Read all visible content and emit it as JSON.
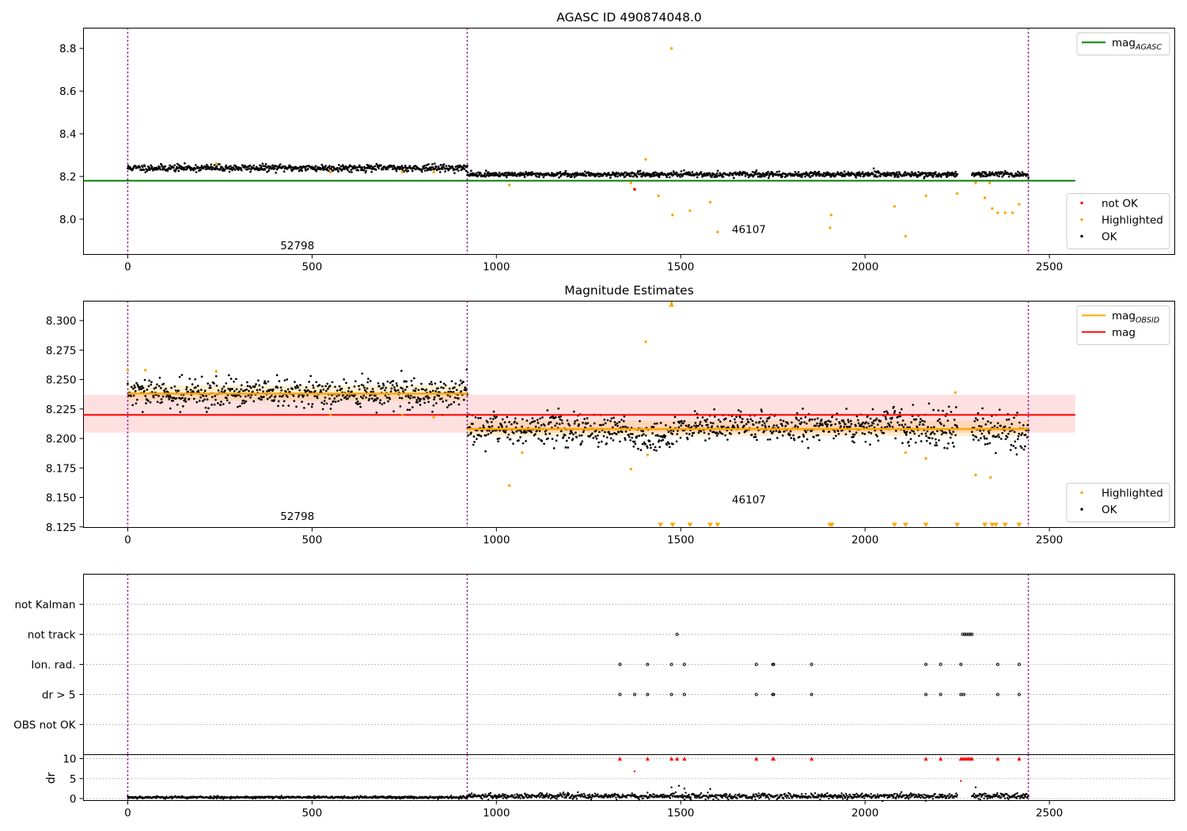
{
  "chart_data": [
    {
      "id": "mag",
      "type": "scatter",
      "title": "AGASC ID 490874048.0",
      "xlim": [
        -120,
        2840
      ],
      "ylim": [
        7.835,
        8.895
      ],
      "xticks": [
        0,
        500,
        1000,
        1500,
        2000,
        2500
      ],
      "yticks": [
        8.0,
        8.2,
        8.4,
        8.6,
        8.8
      ],
      "ytick_labels": [
        "8.0",
        "8.2",
        "8.4",
        "8.6",
        "8.8"
      ],
      "grid": false,
      "obsid_boundaries": [
        0,
        921,
        2443
      ],
      "obsid_labels": [
        {
          "text": "52798",
          "x": 460,
          "y": 7.86
        },
        {
          "text": "46107",
          "x": 1685,
          "y": 7.935
        }
      ],
      "reference_lines": [
        {
          "name": "mag_AGASC",
          "y": 8.18,
          "x_range": [
            -120,
            2570
          ],
          "color": "#008000"
        }
      ],
      "ok_segments": [
        {
          "x": [
            0,
            921
          ],
          "center": 8.24,
          "spread": 0.008
        },
        {
          "x": [
            921,
            2250
          ],
          "center": 8.21,
          "spread": 0.006
        },
        {
          "x": [
            2290,
            2443
          ],
          "center": 8.21,
          "spread": 0.006
        }
      ],
      "highlighted": [
        [
          240,
          8.26
        ],
        [
          550,
          8.22
        ],
        [
          745,
          8.22
        ],
        [
          830,
          8.22
        ],
        [
          1035,
          8.16
        ],
        [
          1365,
          8.17
        ],
        [
          1405,
          8.28
        ],
        [
          1440,
          8.11
        ],
        [
          1475,
          8.8
        ],
        [
          1478,
          8.02
        ],
        [
          1525,
          8.04
        ],
        [
          1580,
          8.08
        ],
        [
          1600,
          7.94
        ],
        [
          1905,
          7.96
        ],
        [
          1908,
          8.02
        ],
        [
          2080,
          8.06
        ],
        [
          2110,
          7.92
        ],
        [
          2165,
          8.11
        ],
        [
          2250,
          8.12
        ],
        [
          2300,
          8.17
        ],
        [
          2325,
          8.1
        ],
        [
          2338,
          8.17
        ],
        [
          2345,
          8.05
        ],
        [
          2360,
          8.03
        ],
        [
          2380,
          8.03
        ],
        [
          2400,
          8.03
        ],
        [
          2418,
          8.07
        ]
      ],
      "not_ok": [
        [
          1375,
          8.14
        ]
      ],
      "legends": [
        {
          "position": "upper right",
          "entries": [
            {
              "label": "mag",
              "sub": "AGASC",
              "color": "#008000",
              "kind": "line"
            }
          ]
        },
        {
          "position": "lower right",
          "entries": [
            {
              "label": "not OK",
              "color": "#ff0000",
              "kind": "dot"
            },
            {
              "label": "Highlighted",
              "color": "#ffa500",
              "kind": "dot"
            },
            {
              "label": "OK",
              "color": "#000000",
              "kind": "dot"
            }
          ]
        }
      ]
    },
    {
      "id": "estimates",
      "type": "scatter",
      "title": "Magnitude Estimates",
      "xlim": [
        -120,
        2840
      ],
      "ylim": [
        8.1245,
        8.3165
      ],
      "xticks": [
        0,
        500,
        1000,
        1500,
        2000,
        2500
      ],
      "yticks": [
        8.125,
        8.15,
        8.175,
        8.2,
        8.225,
        8.25,
        8.275,
        8.3
      ],
      "ytick_labels": [
        "8.125",
        "8.150",
        "8.175",
        "8.200",
        "8.225",
        "8.250",
        "8.275",
        "8.300"
      ],
      "grid": false,
      "obsid_boundaries": [
        0,
        921,
        2443
      ],
      "obsid_labels": [
        {
          "text": "52798",
          "x": 460,
          "y": 8.131
        },
        {
          "text": "46107",
          "x": 1685,
          "y": 8.145
        }
      ],
      "mag_band": {
        "y": [
          8.205,
          8.237
        ],
        "x_range": [
          -120,
          2570
        ],
        "color": "#ff0000",
        "opacity": 0.12
      },
      "mag_line": {
        "y": 8.22,
        "x_range": [
          -120,
          2570
        ],
        "color": "#ff0000"
      },
      "obsid_bands": [
        {
          "x": [
            0,
            921
          ],
          "y": [
            8.232,
            8.245
          ],
          "mean": 8.238
        },
        {
          "x": [
            921,
            2443
          ],
          "y": [
            8.202,
            8.215
          ],
          "mean": 8.208
        }
      ],
      "ok_segments": [
        {
          "x": [
            0,
            921
          ],
          "center": 8.238,
          "spread": 0.006
        },
        {
          "x": [
            921,
            1350
          ],
          "center": 8.208,
          "spread": 0.007
        },
        {
          "x": [
            1350,
            1480
          ],
          "center": 8.202,
          "spread": 0.007
        },
        {
          "x": [
            1480,
            2000
          ],
          "center": 8.21,
          "spread": 0.006
        },
        {
          "x": [
            2000,
            2100
          ],
          "center": 8.214,
          "spread": 0.007
        },
        {
          "x": [
            2100,
            2250
          ],
          "center": 8.208,
          "spread": 0.008
        },
        {
          "x": [
            2290,
            2443
          ],
          "center": 8.206,
          "spread": 0.007
        }
      ],
      "highlighted": [
        [
          0,
          8.258
        ],
        [
          48,
          8.258
        ],
        [
          240,
          8.257
        ],
        [
          550,
          8.22
        ],
        [
          745,
          8.22
        ],
        [
          830,
          8.218
        ],
        [
          1035,
          8.16
        ],
        [
          1070,
          8.188
        ],
        [
          1365,
          8.174
        ],
        [
          1405,
          8.282
        ],
        [
          1410,
          8.186
        ],
        [
          1475,
          8.315
        ],
        [
          2110,
          8.188
        ],
        [
          2165,
          8.183
        ],
        [
          2245,
          8.239
        ],
        [
          2300,
          8.169
        ],
        [
          2340,
          8.167
        ]
      ],
      "offscale_markers": [
        1445,
        1478,
        1525,
        1580,
        1600,
        1905,
        1910,
        2080,
        2110,
        2165,
        2250,
        2325,
        2345,
        2355,
        2380,
        2418
      ],
      "legends": [
        {
          "position": "upper right",
          "entries": [
            {
              "label": "mag",
              "sub": "OBSID",
              "color": "#ffa500",
              "kind": "line"
            },
            {
              "label": "mag",
              "sub": "",
              "color": "#ff0000",
              "kind": "line"
            }
          ]
        },
        {
          "position": "lower right",
          "entries": [
            {
              "label": "Highlighted",
              "color": "#ffa500",
              "kind": "dot"
            },
            {
              "label": "OK",
              "color": "#000000",
              "kind": "dot"
            }
          ]
        }
      ]
    },
    {
      "id": "flags",
      "type": "scatter",
      "xlim": [
        -120,
        2840
      ],
      "categories": [
        "not Kalman",
        "not track",
        "Ion. rad.",
        "dr > 5",
        "OBS not OK"
      ],
      "grid": true,
      "obsid_boundaries": [
        0,
        921,
        2443
      ],
      "points": {
        "not track": [
          1490,
          2265,
          2270,
          2275,
          2280,
          2285,
          2290
        ],
        "Ion. rad.": [
          1335,
          1410,
          1475,
          1510,
          1705,
          1750,
          1752,
          1855,
          2165,
          2205,
          2260,
          2360,
          2418
        ],
        "dr > 5": [
          1335,
          1375,
          1410,
          1475,
          1510,
          1705,
          1750,
          1752,
          1855,
          2165,
          2205,
          2260,
          2268,
          2360,
          2418
        ]
      }
    },
    {
      "id": "dr",
      "type": "scatter",
      "xlim": [
        -120,
        2840
      ],
      "ylim": [
        -0.5,
        11
      ],
      "yticks": [
        0,
        5,
        10
      ],
      "ytick_labels": [
        "0",
        "5",
        "10"
      ],
      "xticks": [
        0,
        500,
        1000,
        1500,
        2000,
        2500
      ],
      "ylabel": "dr",
      "grid": true,
      "obsid_boundaries": [
        0,
        921,
        2443
      ],
      "ok_segments": [
        {
          "x": [
            0,
            921
          ],
          "center": 0.3,
          "spread": 0.15
        },
        {
          "x": [
            921,
            2250
          ],
          "center": 0.6,
          "spread": 0.35
        },
        {
          "x": [
            2290,
            2443
          ],
          "center": 0.6,
          "spread": 0.35
        }
      ],
      "outliers": [
        [
          1375,
          6.8
        ],
        [
          1410,
          1.5
        ],
        [
          1475,
          2.8
        ],
        [
          1495,
          3.2
        ],
        [
          1510,
          2.5
        ],
        [
          1580,
          2.4
        ],
        [
          2260,
          4.4
        ],
        [
          2300,
          2.8
        ]
      ],
      "clipped_at_10": [
        1335,
        1410,
        1475,
        1490,
        1510,
        1705,
        1750,
        1752,
        1855,
        2165,
        2205,
        2260,
        2265,
        2270,
        2275,
        2280,
        2285,
        2290,
        2360,
        2418
      ]
    }
  ]
}
